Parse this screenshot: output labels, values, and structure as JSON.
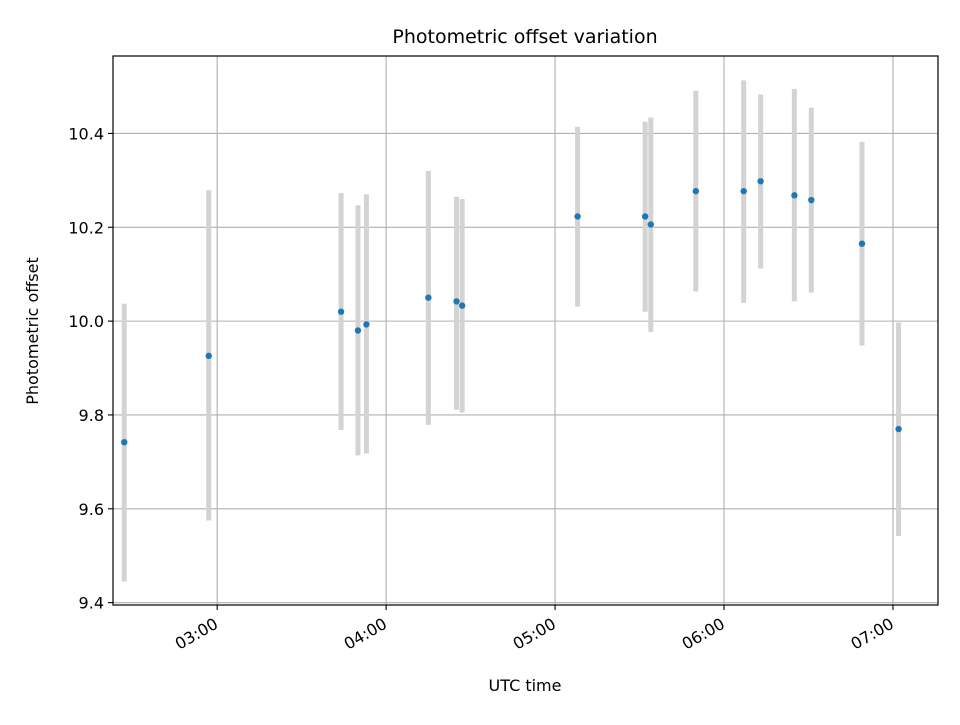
{
  "chart_data": {
    "type": "scatter",
    "title": "Photometric offset variation",
    "xlabel": "UTC time",
    "ylabel": "Photometric offset",
    "x_axis_kind": "time",
    "xlim": [
      "02:23",
      "07:16"
    ],
    "ylim": [
      9.395,
      10.565
    ],
    "grid": true,
    "x_ticks": [
      "03:00",
      "04:00",
      "05:00",
      "06:00",
      "07:00"
    ],
    "y_ticks": [
      "9.4",
      "9.6",
      "9.8",
      "10.0",
      "10.2",
      "10.4"
    ],
    "marker_color": "#1f77b4",
    "errorbar_color": "#d3d3d3",
    "points": [
      {
        "time": "02:27",
        "y": 9.742,
        "low": 9.445,
        "high": 10.037
      },
      {
        "time": "02:57",
        "y": 9.926,
        "low": 9.575,
        "high": 10.279
      },
      {
        "time": "03:44",
        "y": 10.02,
        "low": 9.768,
        "high": 10.273
      },
      {
        "time": "03:50",
        "y": 9.98,
        "low": 9.714,
        "high": 10.247
      },
      {
        "time": "03:53",
        "y": 9.993,
        "low": 9.718,
        "high": 10.27
      },
      {
        "time": "04:15",
        "y": 10.05,
        "low": 9.779,
        "high": 10.32
      },
      {
        "time": "04:25",
        "y": 10.042,
        "low": 9.811,
        "high": 10.265
      },
      {
        "time": "04:27",
        "y": 10.033,
        "low": 9.805,
        "high": 10.26
      },
      {
        "time": "05:08",
        "y": 10.223,
        "low": 10.031,
        "high": 10.414
      },
      {
        "time": "05:32",
        "y": 10.223,
        "low": 10.02,
        "high": 10.425
      },
      {
        "time": "05:34",
        "y": 10.206,
        "low": 9.977,
        "high": 10.434
      },
      {
        "time": "05:50",
        "y": 10.277,
        "low": 10.063,
        "high": 10.491
      },
      {
        "time": "06:07",
        "y": 10.277,
        "low": 10.039,
        "high": 10.513
      },
      {
        "time": "06:13",
        "y": 10.298,
        "low": 10.112,
        "high": 10.483
      },
      {
        "time": "06:25",
        "y": 10.268,
        "low": 10.042,
        "high": 10.495
      },
      {
        "time": "06:31",
        "y": 10.258,
        "low": 10.061,
        "high": 10.455
      },
      {
        "time": "06:49",
        "y": 10.165,
        "low": 9.948,
        "high": 10.382
      },
      {
        "time": "07:02",
        "y": 9.77,
        "low": 9.542,
        "high": 9.997
      }
    ]
  }
}
